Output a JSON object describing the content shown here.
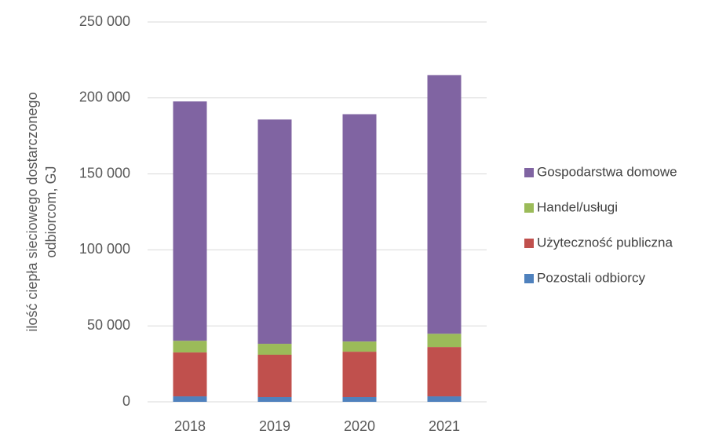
{
  "chart_data": {
    "type": "stacked_bar",
    "y_label": [
      "ilość ciepła sieciowego dostarczonego",
      "odbiorcom, GJ"
    ],
    "categories": [
      "2018",
      "2019",
      "2020",
      "2021"
    ],
    "series": [
      {
        "name": "Pozostali odbiorcy",
        "color": "#4f81bd",
        "values": [
          3600,
          3100,
          3100,
          3600
        ]
      },
      {
        "name": "Użyteczność publiczna",
        "color": "#c0504d",
        "values": [
          28900,
          27900,
          29900,
          32500
        ]
      },
      {
        "name": "Handel/usługi",
        "color": "#9bbb59",
        "values": [
          7700,
          7200,
          6700,
          8700
        ]
      },
      {
        "name": "Gospodarstwa domowe",
        "color": "#8064a2",
        "values": [
          157500,
          147600,
          149600,
          170200
        ]
      }
    ],
    "ylim": [
      0,
      250000
    ],
    "yticks": [
      {
        "value": 0,
        "label": "0"
      },
      {
        "value": 50000,
        "label": "50 000"
      },
      {
        "value": 100000,
        "label": "100 000"
      },
      {
        "value": 150000,
        "label": "150 000"
      },
      {
        "value": 200000,
        "label": "200 000"
      },
      {
        "value": 250000,
        "label": "250 000"
      }
    ],
    "grid": true,
    "legend": "right"
  }
}
